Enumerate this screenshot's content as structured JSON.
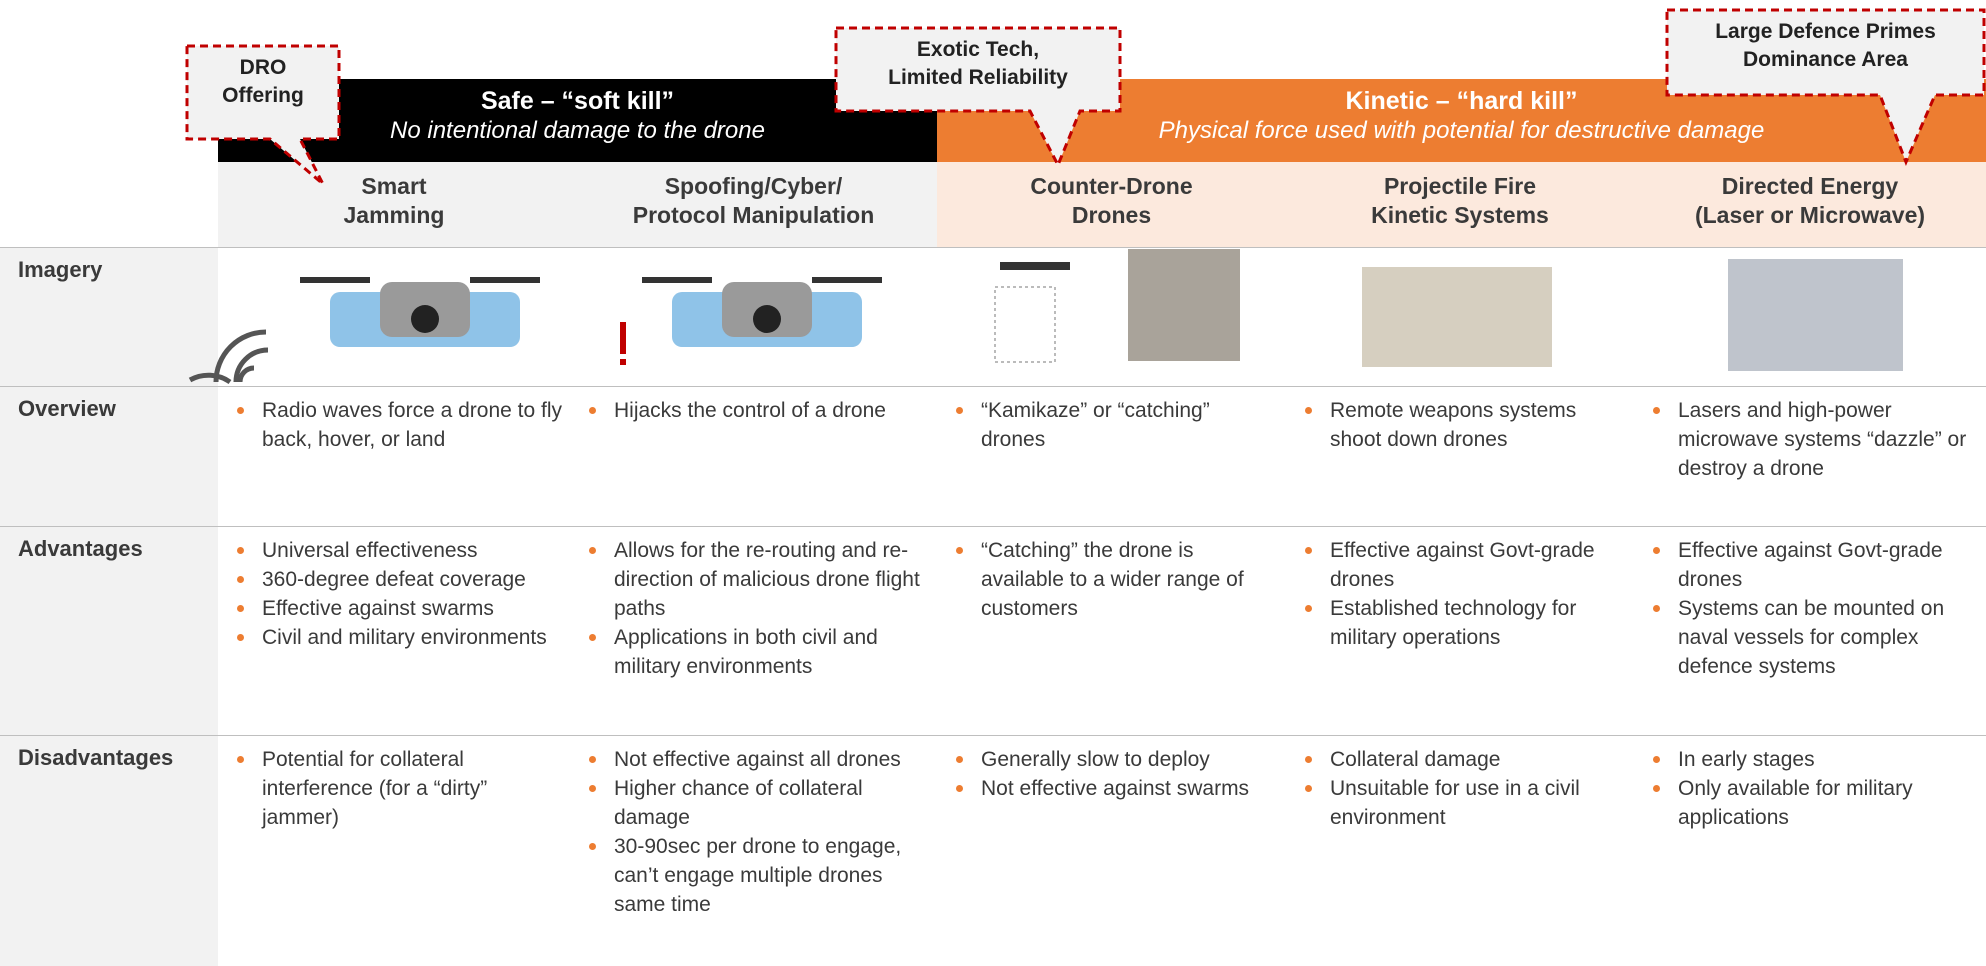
{
  "banner": {
    "safe": {
      "title": "Safe – “soft kill”",
      "subtitle": "No intentional damage to the drone"
    },
    "kinetic": {
      "title": "Kinetic – “hard kill”",
      "subtitle": "Physical force used with potential for destructive damage"
    }
  },
  "callouts": [
    [
      "DRO",
      "Offering"
    ],
    [
      "Exotic Tech,",
      "Limited Reliability"
    ],
    [
      "Large Defence Primes",
      "Dominance Area"
    ]
  ],
  "columns": [
    [
      "Smart",
      "Jamming"
    ],
    [
      "Spoofing/Cyber/",
      "Protocol Manipulation"
    ],
    [
      "Counter-Drone",
      "Drones"
    ],
    [
      "Projectile Fire",
      "Kinetic Systems"
    ],
    [
      "Directed Energy",
      "(Laser or Microwave)"
    ]
  ],
  "rows": [
    {
      "label": "Imagery"
    },
    {
      "label": "Overview",
      "cells": [
        [
          "Radio waves force a drone to fly back, hover, or land"
        ],
        [
          "Hijacks the control of a drone"
        ],
        [
          "“Kamikaze” or “catching” drones"
        ],
        [
          "Remote weapons systems shoot down drones"
        ],
        [
          "Lasers and high-power microwave systems “dazzle” or destroy a drone"
        ]
      ]
    },
    {
      "label": "Advantages",
      "cells": [
        [
          "Universal effectiveness",
          "360-degree defeat coverage",
          "Effective against swarms",
          "Civil and military environments"
        ],
        [
          "Allows for the re-routing and re-direction of malicious drone flight paths",
          "Applications in both civil and military environments"
        ],
        [
          "“Catching” the drone is available to a wider range of customers"
        ],
        [
          "Effective against Govt-grade drones",
          "Established technology for military operations"
        ],
        [
          "Effective against Govt-grade drones",
          "Systems can be mounted on naval vessels for complex defence systems"
        ]
      ]
    },
    {
      "label": "Disadvantages",
      "cells": [
        [
          "Potential for collateral interference (for a “dirty” jammer)"
        ],
        [
          "Not effective against all drones",
          "Higher chance of collateral damage",
          "30-90sec per drone to engage, can’t engage multiple drones same time"
        ],
        [
          "Generally slow to deploy",
          "Not effective against swarms"
        ],
        [
          "Collateral damage",
          "Unsuitable for use in a civil environment"
        ],
        [
          "In early stages",
          "Only available for military applications"
        ]
      ]
    }
  ]
}
